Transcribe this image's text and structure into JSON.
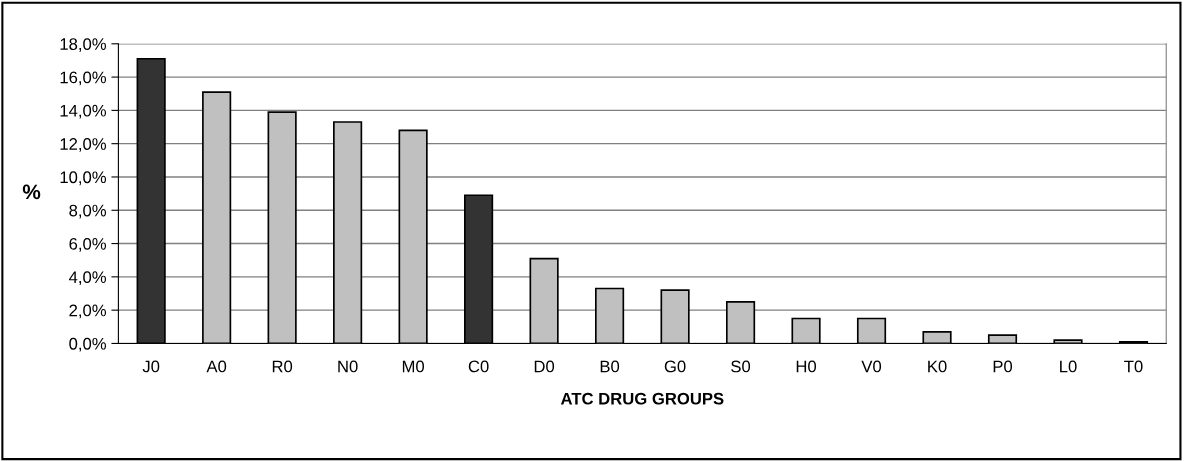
{
  "chart_data": {
    "type": "bar",
    "xlabel": "ATC DRUG GROUPS",
    "ylabel": "%",
    "categories": [
      "J0",
      "A0",
      "R0",
      "N0",
      "M0",
      "C0",
      "D0",
      "B0",
      "G0",
      "S0",
      "H0",
      "V0",
      "K0",
      "P0",
      "L0",
      "T0"
    ],
    "values": [
      17.1,
      15.1,
      13.9,
      13.3,
      12.8,
      8.9,
      5.1,
      3.3,
      3.2,
      2.5,
      1.5,
      1.5,
      0.7,
      0.5,
      0.2,
      0.1
    ],
    "colors": [
      "#333333",
      "#c0c0c0",
      "#c0c0c0",
      "#c0c0c0",
      "#c0c0c0",
      "#333333",
      "#c0c0c0",
      "#c0c0c0",
      "#c0c0c0",
      "#c0c0c0",
      "#c0c0c0",
      "#c0c0c0",
      "#c0c0c0",
      "#c0c0c0",
      "#c0c0c0",
      "#c0c0c0"
    ],
    "ylim": [
      0,
      18
    ],
    "yticks": [
      {
        "value": 0,
        "label": "0,0%"
      },
      {
        "value": 2,
        "label": "2,0%"
      },
      {
        "value": 4,
        "label": "4,0%"
      },
      {
        "value": 6,
        "label": "6,0%"
      },
      {
        "value": 8,
        "label": "8,0%"
      },
      {
        "value": 10,
        "label": "10,0%"
      },
      {
        "value": 12,
        "label": "12,0%"
      },
      {
        "value": 14,
        "label": "14,0%"
      },
      {
        "value": 16,
        "label": "16,0%"
      },
      {
        "value": 18,
        "label": "18,0%"
      }
    ],
    "grid": "y",
    "legend": false
  }
}
